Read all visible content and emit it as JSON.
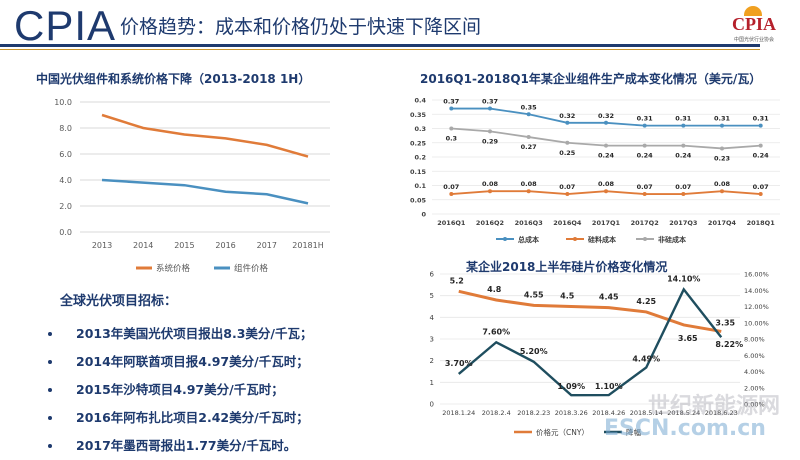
{
  "header": {
    "logo_text": "CPIA",
    "title": "价格趋势：成本和价格仍处于快速下降区间",
    "corner_logo": "CPIA",
    "corner_org": "中国光伏行业协会"
  },
  "colors": {
    "navy": "#1e3a6e",
    "orange": "#e07b39",
    "blue": "#4a90c0",
    "gray_line": "#a9a9a9",
    "dark_teal": "#1f4e5f"
  },
  "charts": {
    "left_title": "中国光伏组件和系统价格下降（2013-2018 1H）",
    "right_top_title": "2016Q1-2018Q1年某企业组件生产成本变化情况（美元/瓦）",
    "right_bottom_title": "某企业2018上半年硅片价格变化情况"
  },
  "chart_data": [
    {
      "type": "line",
      "title": "中国光伏组件和系统价格下降（2013-2018 1H）",
      "categories": [
        "2013",
        "2014",
        "2015",
        "2016",
        "2017",
        "20181H"
      ],
      "ylim": [
        0,
        10
      ],
      "yticks": [
        "0.0",
        "2.0",
        "4.0",
        "6.0",
        "8.0",
        "10.0"
      ],
      "series": [
        {
          "name": "系统价格",
          "color": "#e07b39",
          "values": [
            9.0,
            8.0,
            7.5,
            7.2,
            6.7,
            5.8
          ]
        },
        {
          "name": "组件价格",
          "color": "#4a90c0",
          "values": [
            4.0,
            3.8,
            3.6,
            3.1,
            2.9,
            2.2
          ]
        }
      ],
      "legend": "bottom",
      "grid": true
    },
    {
      "type": "line",
      "title": "2016Q1-2018Q1年某企业组件生产成本变化情况（美元/瓦）",
      "categories": [
        "2016Q1",
        "2016Q2",
        "2016Q3",
        "2016Q4",
        "2017Q1",
        "2017Q2",
        "2017Q3",
        "2017Q4",
        "2018Q1"
      ],
      "ylim": [
        0,
        0.4
      ],
      "yticks": [
        "0",
        "0.05",
        "0.1",
        "0.15",
        "0.2",
        "0.25",
        "0.3",
        "0.35",
        "0.4"
      ],
      "series": [
        {
          "name": "总成本",
          "color": "#4a90c0",
          "values": [
            0.37,
            0.37,
            0.35,
            0.32,
            0.32,
            0.31,
            0.31,
            0.31,
            0.31
          ]
        },
        {
          "name": "硅料成本",
          "color": "#e07b39",
          "values": [
            0.07,
            0.08,
            0.08,
            0.07,
            0.08,
            0.07,
            0.07,
            0.08,
            0.07
          ]
        },
        {
          "name": "非硅成本",
          "color": "#a9a9a9",
          "values": [
            0.3,
            0.29,
            0.27,
            0.25,
            0.24,
            0.24,
            0.24,
            0.23,
            0.24
          ]
        }
      ],
      "legend": "bottom",
      "grid": true
    },
    {
      "type": "line",
      "title": "某企业2018上半年硅片价格变化情况",
      "categories": [
        "2018.1.24",
        "2018.2.4",
        "2018.2.23",
        "2018.3.26",
        "2018.4.26",
        "2018.5.14",
        "2018.5.24",
        "2018.6.23"
      ],
      "ylim": [
        0,
        6
      ],
      "yticks": [
        "0",
        "1",
        "2",
        "3",
        "4",
        "5",
        "6"
      ],
      "y2lim": [
        0,
        16
      ],
      "y2ticks": [
        "0.00%",
        "2.00%",
        "4.00%",
        "6.00%",
        "8.00%",
        "10.00%",
        "12.00%",
        "14.00%",
        "16.00%"
      ],
      "series": [
        {
          "name": "价格元（CNY）",
          "color": "#e07b39",
          "axis": "left",
          "values": [
            5.2,
            4.8,
            4.55,
            4.5,
            4.45,
            4.25,
            3.65,
            3.35
          ],
          "labels": [
            "5.2",
            "4.8",
            "4.55",
            "4.5",
            "4.45",
            "4.25",
            "3.65",
            "3.35"
          ]
        },
        {
          "name": "降幅",
          "color": "#1f4e5f",
          "axis": "right",
          "values": [
            3.7,
            7.6,
            5.2,
            1.09,
            1.1,
            4.49,
            14.1,
            8.22
          ],
          "labels": [
            "3.70%",
            "7.60%",
            "5.20%",
            "1.09%",
            "1.10%",
            "4.49%",
            "14.10%",
            "8.22%"
          ]
        }
      ],
      "legend": "bottom",
      "grid": true
    }
  ],
  "projects": {
    "heading": "全球光伏项目招标：",
    "items": [
      "2013年美国光伏项目报出8.3美分/千瓦；",
      "2014年阿联酋项目报4.97美分/千瓦时；",
      "2015年沙特项目4.97美分/千瓦时；",
      "2016年阿布扎比项目2.42美分/千瓦时；",
      "2017年墨西哥报出1.77美分/千瓦时。"
    ]
  },
  "watermark": {
    "line1": "世纪新能源网",
    "line2": "ESCN.com.cn"
  }
}
